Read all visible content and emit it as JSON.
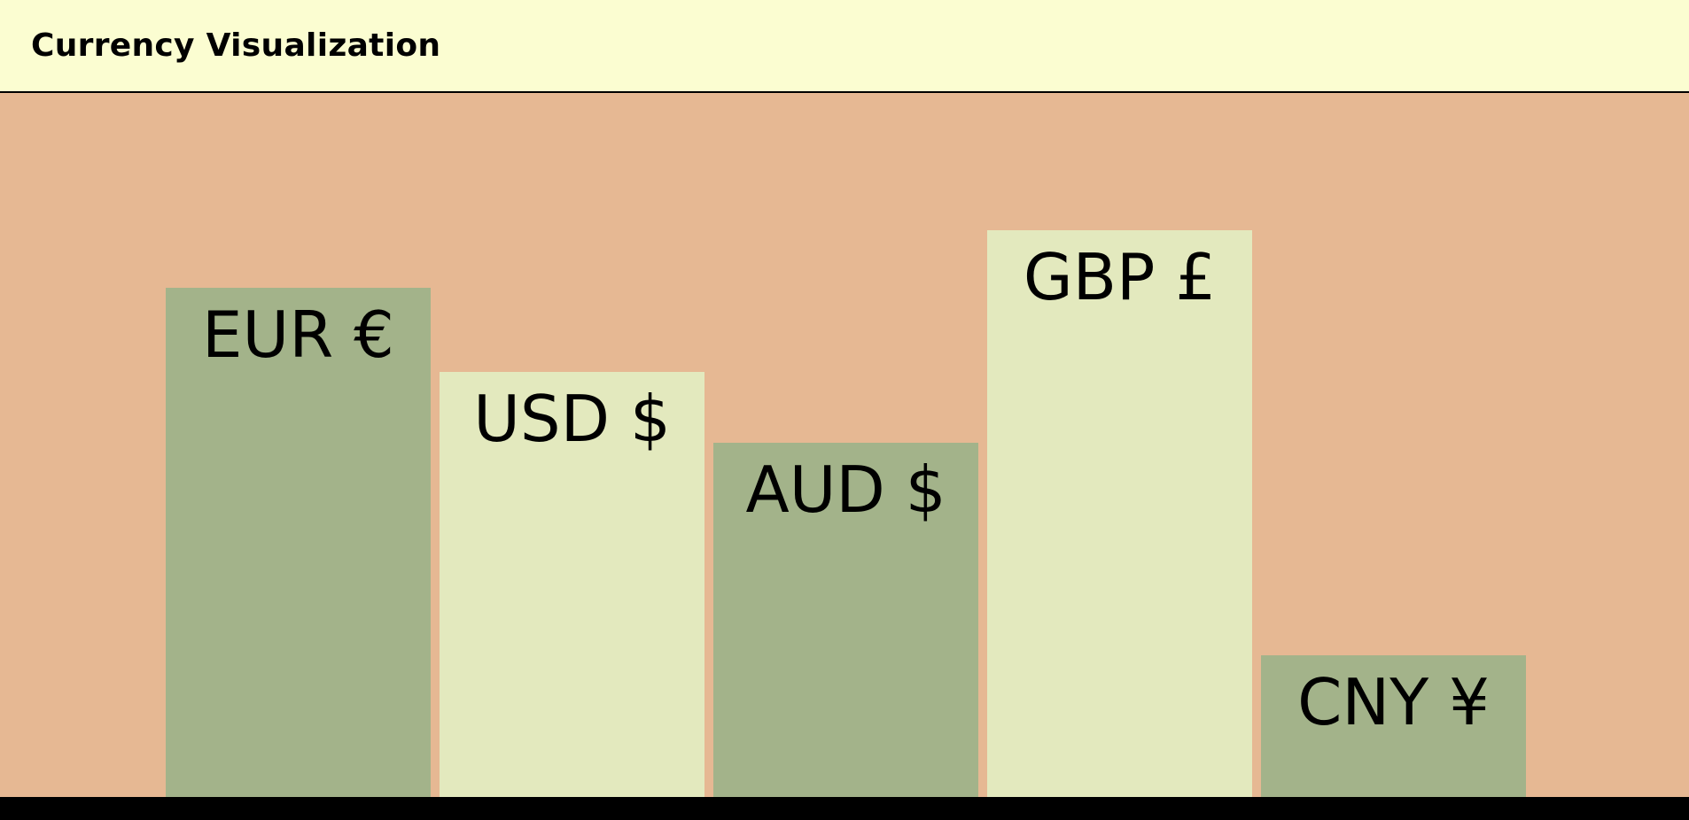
{
  "header": {
    "title": "Currency Visualization"
  },
  "colors": {
    "header_bg": "#fbfdd1",
    "chart_bg": "#e6b893",
    "bar_dark": "#a3b38a",
    "bar_light": "#e3e9be",
    "bottom_bar": "#000000",
    "text": "#000000"
  },
  "chart_data": {
    "type": "bar",
    "categories": [
      "EUR €",
      "USD $",
      "AUD $",
      "GBP £",
      "CNY ¥"
    ],
    "values": [
      575,
      480,
      400,
      640,
      160
    ],
    "ylim": [
      0,
      795
    ],
    "grid": false,
    "legend": "none"
  }
}
